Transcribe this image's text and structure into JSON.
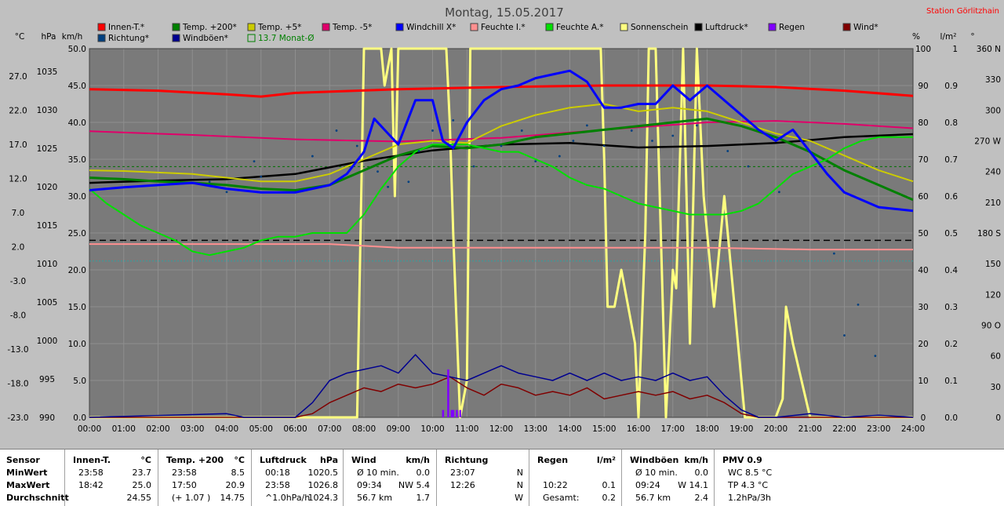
{
  "title": "Montag, 15.05.2017",
  "station": "Station Görlitzhain",
  "colors": {
    "background": "#c0c0c0",
    "plot_bg": "#7a7a7a",
    "grid": "#a0a0a0",
    "accent": "#ff0000"
  },
  "unit_labels": {
    "left": [
      "°C",
      "hPa",
      "km/h"
    ],
    "right": [
      "%",
      "l/m²",
      "°"
    ]
  },
  "legend": [
    {
      "label": "Innen-T.*",
      "color": "#ff0000"
    },
    {
      "label": "Temp. +200*",
      "color": "#008000"
    },
    {
      "label": "Temp. +5*",
      "color": "#cccc00"
    },
    {
      "label": "Temp. -5*",
      "color": "#e0006a"
    },
    {
      "label": "Windchill X*",
      "color": "#0000ff"
    },
    {
      "label": "Feuchte I.*",
      "color": "#ff9090"
    },
    {
      "label": "Feuchte A.*",
      "color": "#00e000"
    },
    {
      "label": "Sonnenschein",
      "color": "#ffff80"
    },
    {
      "label": "Luftdruck*",
      "color": "#000000"
    },
    {
      "label": "Regen",
      "color": "#8000ff"
    },
    {
      "label": "Wind*",
      "color": "#800000"
    },
    {
      "label": "Richtung*",
      "color": "#004080"
    },
    {
      "label": "Windböen*",
      "color": "#000090"
    },
    {
      "label": "13.7 Monat-Ø",
      "color": "#008000"
    }
  ],
  "chart_data": {
    "type": "line",
    "x_ticks": [
      "00:00",
      "01:00",
      "02:00",
      "03:00",
      "04:00",
      "05:00",
      "06:00",
      "07:00",
      "08:00",
      "09:00",
      "10:00",
      "11:00",
      "12:00",
      "13:00",
      "14:00",
      "15:00",
      "16:00",
      "17:00",
      "18:00",
      "19:00",
      "20:00",
      "21:00",
      "22:00",
      "23:00",
      "24:00"
    ],
    "axes": {
      "temp_c": {
        "ticks": [
          "27.0",
          "22.0",
          "17.0",
          "12.0",
          "7.0",
          "2.0",
          "-3.0",
          "-8.0",
          "-13.0",
          "-18.0",
          "-23.0"
        ]
      },
      "pressure_hpa": {
        "ticks": [
          "1035",
          "1030",
          "1025",
          "1020",
          "1015",
          "1010",
          "1005",
          "1000",
          "995",
          "990"
        ]
      },
      "speed_kmh": {
        "ticks": [
          "50.0",
          "45.0",
          "40.0",
          "35.0",
          "30.0",
          "25.0",
          "20.0",
          "15.0",
          "10.0",
          "5.0",
          "0.0"
        ],
        "ylim": [
          0,
          50
        ]
      },
      "humidity_pct": {
        "ticks": [
          "100",
          "90",
          "80",
          "70",
          "60",
          "50",
          "40",
          "30",
          "20",
          "10",
          "0"
        ],
        "ylim": [
          0,
          100
        ]
      },
      "rain_lm2": {
        "ticks": [
          "1",
          "0.9",
          "0.8",
          "0.7",
          "0.6",
          "0.5",
          "0.4",
          "0.3",
          "0.2",
          "0.1",
          "0.0"
        ],
        "ylim": [
          0,
          1
        ]
      },
      "direction_deg": {
        "ticks": [
          "360 N",
          "330",
          "300",
          "270 W",
          "240",
          "210",
          "180 S",
          "150",
          "120",
          "90 O",
          "60",
          "30",
          "0"
        ]
      }
    },
    "reference_lines": [
      {
        "name": "13.7 Monat-Ø",
        "axis": "speed_kmh",
        "value": 34.0
      },
      {
        "axis": "speed_kmh",
        "value": 24.0
      },
      {
        "axis": "speed_kmh",
        "value": 21.2
      }
    ],
    "series": [
      {
        "name": "Innen-T.*",
        "axis": "speed_kmh",
        "color": "#ff0000",
        "x": [
          0,
          2,
          4,
          5,
          6,
          9,
          12,
          15,
          18,
          20,
          22,
          24
        ],
        "y": [
          44.5,
          44.3,
          43.8,
          43.5,
          44.0,
          44.5,
          44.8,
          45.0,
          45.0,
          44.8,
          44.3,
          43.6
        ]
      },
      {
        "name": "Temp. -5*",
        "axis": "speed_kmh",
        "color": "#e0006a",
        "x": [
          0,
          3,
          6,
          9,
          12,
          15,
          18,
          20,
          22,
          24
        ],
        "y": [
          38.8,
          38.3,
          37.7,
          37.4,
          37.9,
          39.0,
          40.0,
          40.2,
          39.8,
          39.2
        ]
      },
      {
        "name": "Luftdruck*",
        "axis": "speed_kmh",
        "color": "#000000",
        "x": [
          0,
          2,
          4,
          6,
          8,
          10,
          12,
          14,
          16,
          18,
          20,
          22,
          24
        ],
        "y": [
          31.8,
          32.1,
          32.3,
          33.0,
          34.8,
          36.2,
          37.0,
          37.2,
          36.6,
          36.8,
          37.2,
          38.0,
          38.4
        ]
      },
      {
        "name": "Temp. +5*",
        "axis": "speed_kmh",
        "color": "#cccc00",
        "x": [
          0,
          1,
          2,
          3,
          4,
          5,
          6,
          7,
          8,
          9,
          10,
          11,
          12,
          13,
          14,
          15,
          16,
          17,
          18,
          19,
          20,
          21,
          22,
          23,
          24
        ],
        "y": [
          33.5,
          33.4,
          33.2,
          33.0,
          32.5,
          32.0,
          32.0,
          33.0,
          35.0,
          37.0,
          37.5,
          37.2,
          39.5,
          41.0,
          42.0,
          42.5,
          41.5,
          42.0,
          41.5,
          40.0,
          38.5,
          37.5,
          35.5,
          33.5,
          32.0
        ]
      },
      {
        "name": "Temp. +200*",
        "axis": "speed_kmh",
        "color": "#008000",
        "x": [
          0,
          1,
          2,
          3,
          4,
          5,
          6,
          7,
          8,
          9,
          10,
          11,
          12,
          13,
          14,
          15,
          16,
          17,
          18,
          19,
          20,
          21,
          22,
          23,
          24
        ],
        "y": [
          32.5,
          32.3,
          32.0,
          31.8,
          31.5,
          31.0,
          30.8,
          31.5,
          33.5,
          35.5,
          36.8,
          36.5,
          37.0,
          38.0,
          38.5,
          39.0,
          39.5,
          40.0,
          40.5,
          39.5,
          38.0,
          36.0,
          33.5,
          31.5,
          29.5
        ]
      },
      {
        "name": "Windchill X*",
        "axis": "speed_kmh",
        "color": "#0000ff",
        "x": [
          0,
          1,
          2,
          3,
          4,
          5,
          6,
          7,
          7.5,
          8,
          8.3,
          8.7,
          9,
          9.5,
          10,
          10.3,
          10.6,
          11,
          11.5,
          12,
          12.5,
          13,
          13.5,
          14,
          14.5,
          15,
          15.5,
          16,
          16.5,
          17,
          17.5,
          18,
          18.5,
          19,
          19.5,
          20,
          20.5,
          21,
          21.5,
          22,
          23,
          24
        ],
        "y": [
          30.8,
          31.2,
          31.5,
          31.8,
          31.0,
          30.5,
          30.5,
          31.5,
          33.0,
          36.0,
          40.5,
          38.5,
          37.0,
          43.0,
          43.0,
          37.5,
          36.5,
          40.0,
          43.0,
          44.5,
          45.0,
          46.0,
          46.5,
          47.0,
          45.5,
          42.0,
          42.0,
          42.5,
          42.5,
          45.0,
          43.0,
          45.0,
          43.0,
          41.0,
          39.0,
          37.5,
          39.0,
          36.0,
          33.0,
          30.5,
          28.5,
          28.0
        ]
      },
      {
        "name": "Feuchte A.*",
        "axis": "humidity_pct",
        "color": "#00e000",
        "x": [
          0,
          0.5,
          1,
          1.5,
          2,
          2.5,
          3,
          3.5,
          4,
          4.5,
          5,
          5.5,
          6,
          6.5,
          7,
          7.5,
          8,
          8.5,
          9,
          9.5,
          10,
          10.5,
          11,
          11.5,
          12,
          12.5,
          13,
          13.5,
          14,
          14.5,
          15,
          15.5,
          16,
          16.5,
          17,
          17.5,
          18,
          18.5,
          19,
          19.5,
          20,
          20.5,
          21,
          21.5,
          22,
          22.5,
          23,
          23.5,
          24
        ],
        "y": [
          62,
          58,
          55,
          52,
          50,
          48,
          45,
          44,
          45,
          46,
          48,
          49,
          49,
          50,
          50,
          50,
          55,
          62,
          68,
          72,
          74,
          74,
          74,
          73,
          72,
          72,
          70,
          68,
          65,
          63,
          62,
          60,
          58,
          57,
          56,
          55,
          55,
          55,
          56,
          58,
          62,
          66,
          68,
          70,
          73,
          75,
          76,
          76,
          76
        ]
      },
      {
        "name": "Feuchte I.*",
        "axis": "humidity_pct",
        "color": "#ff9090",
        "x": [
          0,
          3,
          6,
          7,
          8,
          9,
          12,
          15,
          18,
          21,
          24
        ],
        "y": [
          47,
          47,
          47,
          47,
          46.5,
          46,
          46,
          46,
          46,
          45.5,
          45.5
        ]
      },
      {
        "name": "Sonnenschein",
        "axis": "humidity_pct",
        "color": "#ffff80",
        "x": [
          0,
          7.8,
          8,
          8.3,
          8.5,
          8.6,
          8.8,
          8.9,
          9,
          10.4,
          10.5,
          10.6,
          10.8,
          11,
          11.1,
          14.9,
          15,
          15.1,
          15.3,
          15.5,
          15.7,
          15.9,
          16,
          16.2,
          16.3,
          16.5,
          16.8,
          17,
          17.1,
          17.3,
          17.5,
          17.7,
          17.9,
          18.2,
          18.5,
          19.1,
          19.5,
          19.8,
          20,
          20.2,
          20.3,
          20.5,
          21,
          24
        ],
        "y": [
          0,
          0,
          100,
          100,
          100,
          90,
          100,
          60,
          100,
          100,
          80,
          50,
          0,
          10,
          100,
          100,
          70,
          30,
          30,
          40,
          30,
          20,
          0,
          50,
          100,
          100,
          0,
          40,
          35,
          100,
          20,
          100,
          60,
          30,
          60,
          0,
          0,
          0,
          0,
          5,
          30,
          20,
          0,
          0
        ]
      },
      {
        "name": "Wind*",
        "axis": "speed_kmh",
        "color": "#800000",
        "x": [
          0,
          6,
          6.5,
          7,
          7.5,
          8,
          8.5,
          9,
          9.5,
          10,
          10.5,
          11,
          11.5,
          12,
          12.5,
          13,
          13.5,
          14,
          14.5,
          15,
          15.5,
          16,
          16.5,
          17,
          17.5,
          18,
          18.5,
          19,
          19.5,
          20,
          24
        ],
        "y": [
          0,
          0,
          0.5,
          2,
          3,
          4,
          3.5,
          4.5,
          4,
          4.5,
          5.5,
          4,
          3,
          4.5,
          4,
          3,
          3.5,
          3,
          4,
          2.5,
          3,
          3.5,
          3,
          3.5,
          2.5,
          3,
          2,
          0.5,
          0,
          0,
          0
        ]
      },
      {
        "name": "Windböen*",
        "axis": "speed_kmh",
        "color": "#000090",
        "x": [
          0,
          4,
          4.5,
          6,
          6.5,
          7,
          7.5,
          8,
          8.5,
          9,
          9.5,
          10,
          10.5,
          11,
          11.5,
          12,
          12.5,
          13,
          13.5,
          14,
          14.5,
          15,
          15.5,
          16,
          16.5,
          17,
          17.5,
          18,
          18.5,
          19,
          19.5,
          20,
          21,
          22,
          23,
          24
        ],
        "y": [
          0,
          0.5,
          0,
          0,
          2,
          5,
          6,
          6.5,
          7,
          6,
          8.5,
          6,
          5.5,
          5,
          6,
          7,
          6,
          5.5,
          5,
          6,
          5,
          6,
          5,
          5.5,
          5,
          6,
          5,
          5.5,
          3,
          1,
          0,
          0,
          0.5,
          0,
          0.3,
          0
        ]
      },
      {
        "name": "Regen",
        "axis": "rain_lm2",
        "color": "#8000ff",
        "x": [
          10.3,
          10.45,
          10.55,
          10.6,
          10.7,
          10.8
        ],
        "y": [
          0.02,
          0.13,
          0.02,
          0.02,
          0.02,
          0.02
        ]
      },
      {
        "name": "Richtung*",
        "axis": "direction_deg",
        "color": "#004080",
        "x": [
          3.5,
          4,
          4.8,
          5,
          6.5,
          7.2,
          7.8,
          8.4,
          8.7,
          9.3,
          9.6,
          10,
          10.6,
          11.2,
          12,
          12.6,
          13,
          13.7,
          14.1,
          14.5,
          15,
          15.8,
          16.4,
          17,
          17.7,
          18.6,
          19.2,
          20.1,
          21.7,
          22,
          22.4,
          22.9
        ],
        "y": [
          230,
          220,
          250,
          235,
          255,
          280,
          265,
          240,
          225,
          230,
          260,
          280,
          290,
          245,
          265,
          280,
          250,
          255,
          270,
          285,
          265,
          280,
          270,
          275,
          285,
          260,
          245,
          220,
          160,
          80,
          110,
          60
        ]
      }
    ]
  },
  "table": {
    "row_labels": [
      "Sensor",
      "MinWert",
      "MaxWert",
      "Durchschnitt"
    ],
    "columns": [
      {
        "h": [
          "Innen-T.",
          "°C"
        ],
        "rows": [
          [
            "23:58",
            "23.7"
          ],
          [
            "18:42",
            "25.0"
          ],
          [
            "",
            "24.55"
          ]
        ]
      },
      {
        "h": [
          "Temp. +200",
          "°C"
        ],
        "rows": [
          [
            "23:58",
            "8.5"
          ],
          [
            "17:50",
            "20.9"
          ],
          [
            "(+ 1.07 )",
            "14.75"
          ]
        ]
      },
      {
        "h": [
          "Luftdruck",
          "hPa"
        ],
        "rows": [
          [
            "00:18",
            "1020.5"
          ],
          [
            "23:58",
            "1026.8"
          ],
          [
            "^1.0hPa/h",
            "1024.3"
          ]
        ]
      },
      {
        "h": [
          "Wind",
          "km/h"
        ],
        "rows": [
          [
            "Ø 10 min.",
            "0.0"
          ],
          [
            "09:34",
            "NW 5.4"
          ],
          [
            "56.7 km",
            "1.7"
          ]
        ]
      },
      {
        "h": [
          "Richtung",
          ""
        ],
        "rows": [
          [
            "23:07",
            "N"
          ],
          [
            "12:26",
            "N"
          ],
          [
            "",
            "W"
          ]
        ]
      },
      {
        "h": [
          "Regen",
          "l/m²"
        ],
        "rows": [
          [
            "",
            ""
          ],
          [
            "10:22",
            "0.1"
          ],
          [
            "Gesamt:",
            "0.2"
          ]
        ]
      },
      {
        "h": [
          "Windböen",
          "km/h"
        ],
        "rows": [
          [
            "Ø 10 min.",
            "0.0"
          ],
          [
            "09:24",
            "W 14.1"
          ],
          [
            "56.7 km",
            "2.4"
          ]
        ]
      },
      {
        "h": [
          "PMV 0.9",
          ""
        ],
        "rows": [
          [
            "WC 8.5 °C",
            ""
          ],
          [
            "TP 4.3 °C",
            ""
          ],
          [
            "1.2hPa/3h",
            ""
          ]
        ]
      }
    ]
  }
}
